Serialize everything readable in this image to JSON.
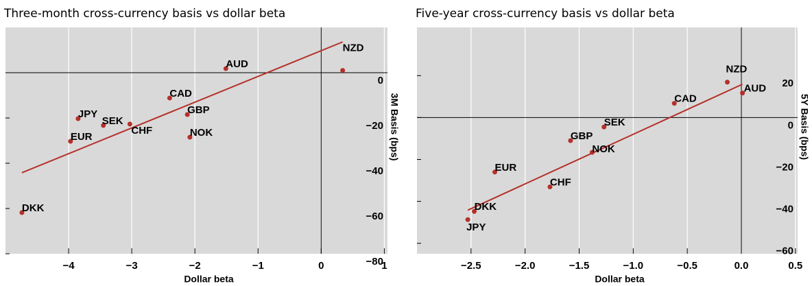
{
  "chart_data": [
    {
      "type": "scatter",
      "title": "Three-month cross-currency basis vs dollar beta",
      "xlabel": "Dollar beta",
      "ylabel": "3M Basis (bps)",
      "categories": [
        "NZD",
        "AUD",
        "CAD",
        "GBP",
        "NOK",
        "JPY",
        "SEK",
        "CHF",
        "EUR",
        "DKK"
      ],
      "x": [
        0.34,
        -1.51,
        -2.4,
        -2.12,
        -2.08,
        -3.85,
        -3.45,
        -3.03,
        -3.97,
        -4.74
      ],
      "values": [
        1,
        1.8,
        -11.2,
        -18.5,
        -28.5,
        -20.3,
        -23.3,
        -22.7,
        -30.3,
        -61.8
      ],
      "color": "#b5302a",
      "trendline": {
        "x": [
          -4.74,
          0.34
        ],
        "values": [
          -44.2,
          13.6
        ],
        "color": "#b5302a"
      },
      "xlim": [
        -5,
        1.05
      ],
      "ylim": [
        -80,
        20
      ],
      "xticks": [
        {
          "value": -4,
          "label": "−4"
        },
        {
          "value": -3,
          "label": "−3"
        },
        {
          "value": -2,
          "label": "−2"
        },
        {
          "value": -1,
          "label": "−1"
        },
        0,
        1
      ],
      "yticks": [
        0,
        {
          "value": -20,
          "label": "−20"
        },
        {
          "value": -40,
          "label": "−40"
        },
        {
          "value": -60,
          "label": "−60"
        },
        {
          "value": -80,
          "label": "−80"
        }
      ],
      "grid": true
    },
    {
      "type": "scatter",
      "title": "Five-year cross-currency basis vs dollar beta",
      "xlabel": "Dollar beta",
      "ylabel": "5Y Basis (bps)",
      "categories": [
        "NZD",
        "AUD",
        "CAD",
        "SEK",
        "GBP",
        "NOK",
        "EUR",
        "CHF",
        "DKK",
        "JPY"
      ],
      "x": [
        -0.13,
        0.01,
        -0.62,
        -1.27,
        -1.58,
        -1.38,
        -2.28,
        -1.77,
        -2.47,
        -2.53
      ],
      "values": [
        16.9,
        11.7,
        6.8,
        -4.5,
        -11,
        -16.6,
        -26,
        -33.1,
        -44.8,
        -48.7
      ],
      "color": "#b5302a",
      "trendline": {
        "x": [
          -2.53,
          0.01
        ],
        "values": [
          -44.2,
          15.9
        ],
        "color": "#b5302a"
      },
      "xlim": [
        -3.0,
        0.52
      ],
      "ylim": [
        -65,
        43
      ],
      "xticks": [
        {
          "value": -2.5,
          "label": "−2.5"
        },
        {
          "value": -2.0,
          "label": "−2.0"
        },
        {
          "value": -1.5,
          "label": "−1.5"
        },
        {
          "value": -1.0,
          "label": "−1.0"
        },
        {
          "value": -0.5,
          "label": "−0.5"
        },
        {
          "value": 0.0,
          "label": "0.0"
        },
        0.5
      ],
      "yticks": [
        20,
        0,
        {
          "value": -20,
          "label": "−20"
        },
        {
          "value": -40,
          "label": "−40"
        },
        {
          "value": -60,
          "label": "−60"
        }
      ],
      "grid": true
    }
  ]
}
